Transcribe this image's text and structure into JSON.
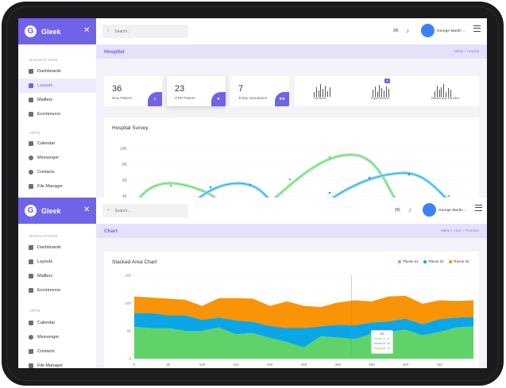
{
  "app": {
    "name": "Gleek",
    "logo_letter": "G"
  },
  "search": {
    "placeholder": "Search..."
  },
  "user": {
    "name": "George Martin",
    "caret": "⌄"
  },
  "nav": {
    "section_navigation": "NAVIGATIONS",
    "section_apps": "APPS",
    "items": [
      {
        "label": "Dashboards",
        "icon": "grid-icon"
      },
      {
        "label": "Layouts",
        "icon": "layout-icon"
      },
      {
        "label": "Mailbox",
        "icon": "mail-icon"
      },
      {
        "label": "Ecommerce",
        "icon": "cart-icon"
      }
    ],
    "app_items": [
      {
        "label": "Calendar",
        "icon": "calendar-icon"
      },
      {
        "label": "Messenger",
        "icon": "message-icon"
      },
      {
        "label": "Contacts",
        "icon": "contact-icon"
      },
      {
        "label": "File Manager",
        "icon": "folder-icon"
      }
    ]
  },
  "hospital": {
    "page_title": "Hospital",
    "breadcrumb_home": "Home",
    "breadcrumb_sep": ">",
    "breadcrumb_current": "Hospital",
    "stats": [
      {
        "value": "36",
        "label": "New Patient",
        "icon": "user-plus-icon"
      },
      {
        "value": "23",
        "label": "OPD Patient",
        "icon": "user-icon"
      },
      {
        "value": "7",
        "label": "Today Operations",
        "icon": "users-icon"
      }
    ],
    "sparks": [
      {
        "label": "Visitors"
      },
      {
        "label": "Operations",
        "pill": "8"
      },
      {
        "label": "Medicine Stocks"
      }
    ],
    "survey": {
      "title": "Hospital Survey",
      "yticks": [
        "100",
        "80",
        "60",
        "40"
      ]
    }
  },
  "chart_page": {
    "page_title": "Chart",
    "breadcrumb_home": "Home",
    "breadcrumb_mid": "Chart",
    "breadcrumb_current": "FlotChart",
    "sep": ">"
  },
  "colors": {
    "brand": "#7063e8",
    "theme01": "#5fd36a",
    "theme02": "#0aa6e8",
    "theme03": "#f89406"
  },
  "chart_data": {
    "type": "area",
    "title": "Stacked Area Chart",
    "stacked": true,
    "legend_position": "top-right",
    "xlim": [
      0,
      500
    ],
    "ylim": [
      0,
      150
    ],
    "xticks": [
      0,
      50,
      100,
      150,
      200,
      250,
      300,
      350,
      400,
      450
    ],
    "yticks": [
      0,
      50,
      100,
      150
    ],
    "x": [
      0,
      25,
      50,
      75,
      100,
      125,
      150,
      175,
      200,
      225,
      250,
      275,
      300,
      325,
      350,
      375,
      400,
      425,
      450,
      475,
      500
    ],
    "series": [
      {
        "name": "Theme 01",
        "values": [
          57,
          55,
          55,
          50,
          50,
          56,
          44,
          46,
          37,
          30,
          20,
          40,
          38,
          35,
          45,
          48,
          52,
          42,
          48,
          56,
          58
        ]
      },
      {
        "name": "Theme 02",
        "values": [
          25,
          27,
          23,
          28,
          20,
          18,
          25,
          20,
          22,
          25,
          35,
          18,
          23,
          25,
          20,
          19,
          20,
          20,
          23,
          18,
          17
        ]
      },
      {
        "name": "Theme 03",
        "values": [
          30,
          28,
          30,
          28,
          25,
          35,
          40,
          42,
          36,
          48,
          40,
          35,
          40,
          45,
          38,
          45,
          41,
          37,
          34,
          30,
          30
        ]
      }
    ],
    "tooltip": {
      "x": "320",
      "items": [
        "Theme 01: 31",
        "Theme 02: 30",
        "Theme 03: 45"
      ]
    }
  }
}
